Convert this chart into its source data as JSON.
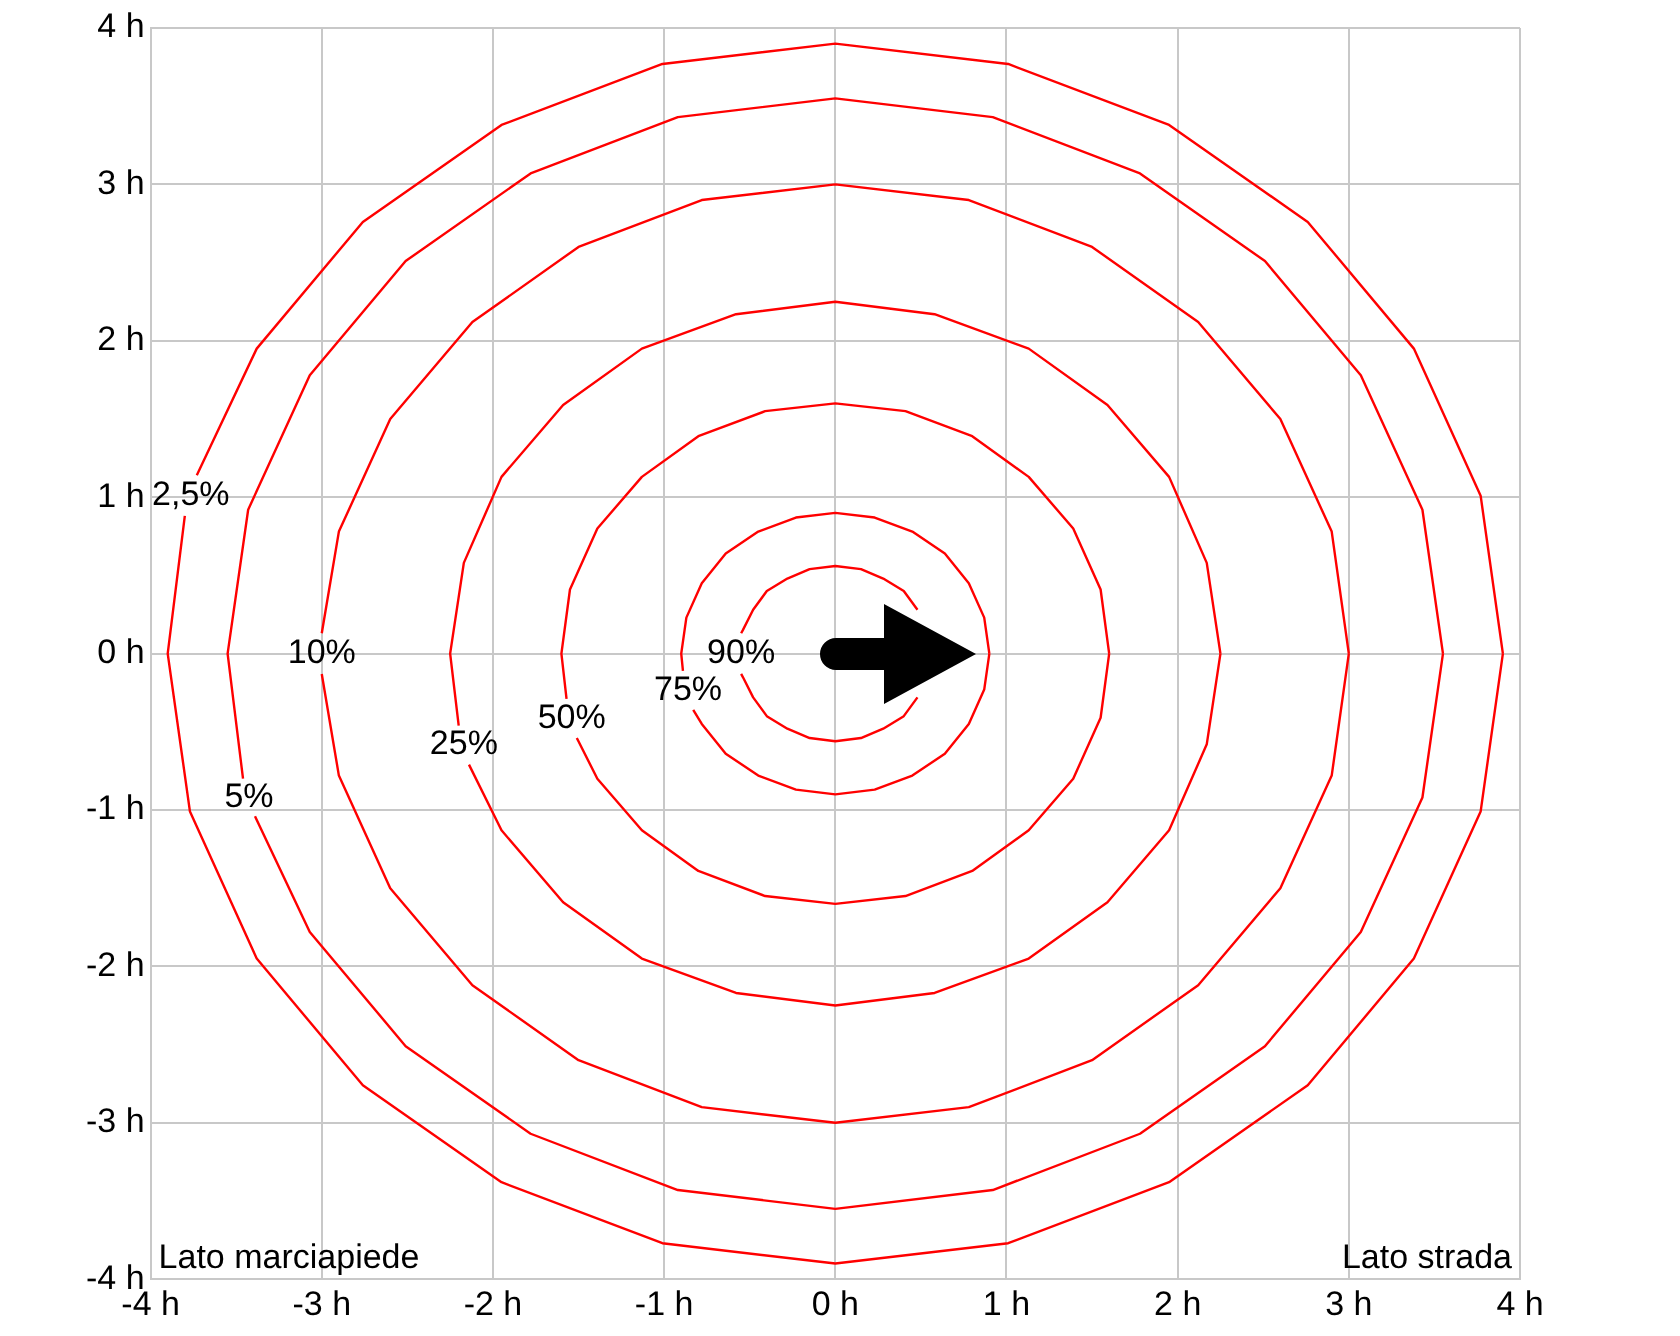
{
  "chart_data": {
    "type": "line",
    "xlim": [
      -4,
      4
    ],
    "ylim": [
      -4,
      4
    ],
    "xticks": [
      {
        "value": -4,
        "label": "-4 h"
      },
      {
        "value": -3,
        "label": "-3 h"
      },
      {
        "value": -2,
        "label": "-2 h"
      },
      {
        "value": -1,
        "label": "-1 h"
      },
      {
        "value": 0,
        "label": "0 h"
      },
      {
        "value": 1,
        "label": "1 h"
      },
      {
        "value": 2,
        "label": "2 h"
      },
      {
        "value": 3,
        "label": "3 h"
      },
      {
        "value": 4,
        "label": "4 h"
      }
    ],
    "yticks": [
      {
        "value": -4,
        "label": "-4 h"
      },
      {
        "value": -3,
        "label": "-3 h"
      },
      {
        "value": -2,
        "label": "-2 h"
      },
      {
        "value": -1,
        "label": "-1 h"
      },
      {
        "value": 0,
        "label": "0 h"
      },
      {
        "value": 1,
        "label": "1 h"
      },
      {
        "value": 2,
        "label": "2 h"
      },
      {
        "value": 3,
        "label": "3 h"
      },
      {
        "value": 4,
        "label": "4 h"
      }
    ],
    "grid": true,
    "marker": "none",
    "line_style": "solid",
    "annotations": [
      "Lato marciapiede",
      "Lato strada"
    ],
    "series": [
      {
        "name": "2,5%",
        "color": "#ff0000",
        "x": [
          3.9,
          3.77,
          3.38,
          2.76,
          1.95,
          1.01,
          0,
          -1.01,
          -1.95,
          -2.76,
          -3.38,
          -3.73,
          null,
          -3.8,
          -3.9,
          -3.77,
          -3.38,
          -2.76,
          -1.95,
          -1.01,
          0,
          1.01,
          1.95,
          2.76,
          3.38,
          3.77,
          3.9
        ],
        "values": [
          0,
          1.01,
          1.95,
          2.76,
          3.38,
          3.77,
          3.9,
          3.77,
          3.38,
          2.76,
          1.95,
          1.14,
          null,
          0.88,
          0,
          -1.01,
          -1.95,
          -2.76,
          -3.38,
          -3.77,
          -3.9,
          -3.77,
          -3.38,
          -2.76,
          -1.95,
          -1.01,
          0
        ]
      },
      {
        "name": "5%",
        "color": "#ff0000",
        "x": [
          3.55,
          3.43,
          3.07,
          2.51,
          1.78,
          0.92,
          0,
          -0.92,
          -1.78,
          -2.51,
          -3.07,
          -3.43,
          -3.55,
          -3.46,
          null,
          -3.39,
          -3.07,
          -2.51,
          -1.78,
          -0.92,
          0,
          0.92,
          1.78,
          2.51,
          3.07,
          3.43,
          3.55
        ],
        "values": [
          0,
          0.92,
          1.78,
          2.51,
          3.07,
          3.43,
          3.55,
          3.43,
          3.07,
          2.51,
          1.78,
          0.92,
          0,
          -0.8,
          null,
          -1.04,
          -1.78,
          -2.51,
          -3.07,
          -3.43,
          -3.55,
          -3.43,
          -3.07,
          -2.51,
          -1.78,
          -0.92,
          0
        ]
      },
      {
        "name": "10%",
        "color": "#ff0000",
        "x": [
          3,
          2.9,
          2.6,
          2.12,
          1.5,
          0.78,
          0,
          -0.78,
          -1.5,
          -2.12,
          -2.6,
          -2.9,
          -3,
          null,
          -3,
          -2.9,
          -2.6,
          -2.12,
          -1.5,
          -0.78,
          0,
          0.78,
          1.5,
          2.12,
          2.6,
          2.9,
          3
        ],
        "values": [
          0,
          0.78,
          1.5,
          2.12,
          2.6,
          2.9,
          3,
          2.9,
          2.6,
          2.12,
          1.5,
          0.78,
          0.13,
          null,
          -0.13,
          -0.78,
          -1.5,
          -2.12,
          -2.6,
          -2.9,
          -3,
          -2.9,
          -2.6,
          -2.12,
          -1.5,
          -0.78,
          0
        ]
      },
      {
        "name": "25%",
        "color": "#ff0000",
        "x": [
          2.25,
          2.17,
          1.95,
          1.59,
          1.13,
          0.58,
          0,
          -0.58,
          -1.13,
          -1.59,
          -1.95,
          -2.17,
          -2.25,
          -2.2,
          null,
          -2.14,
          -1.95,
          -1.59,
          -1.13,
          -0.58,
          0,
          0.58,
          1.13,
          1.59,
          1.95,
          2.17,
          2.25
        ],
        "values": [
          0,
          0.58,
          1.13,
          1.59,
          1.95,
          2.17,
          2.25,
          2.17,
          1.95,
          1.59,
          1.13,
          0.58,
          0,
          -0.46,
          null,
          -0.71,
          -1.13,
          -1.59,
          -1.95,
          -2.17,
          -2.25,
          -2.17,
          -1.95,
          -1.59,
          -1.13,
          -0.58,
          0
        ]
      },
      {
        "name": "50%",
        "color": "#ff0000",
        "x": [
          1.6,
          1.55,
          1.39,
          1.13,
          0.8,
          0.41,
          0,
          -0.41,
          -0.8,
          -1.13,
          -1.39,
          -1.55,
          -1.6,
          -1.57,
          null,
          -1.51,
          -1.39,
          -1.13,
          -0.8,
          -0.41,
          0,
          0.41,
          0.8,
          1.13,
          1.39,
          1.55,
          1.6
        ],
        "values": [
          0,
          0.41,
          0.8,
          1.13,
          1.39,
          1.55,
          1.6,
          1.55,
          1.39,
          1.13,
          0.8,
          0.41,
          0,
          -0.29,
          null,
          -0.54,
          -0.8,
          -1.13,
          -1.39,
          -1.55,
          -1.6,
          -1.55,
          -1.39,
          -1.13,
          -0.8,
          -0.41,
          0
        ]
      },
      {
        "name": "75%",
        "color": "#ff0000",
        "x": [
          0.9,
          0.87,
          0.78,
          0.64,
          0.45,
          0.23,
          0,
          -0.23,
          -0.45,
          -0.64,
          -0.78,
          -0.87,
          -0.9,
          -0.89,
          null,
          -0.83,
          -0.78,
          -0.64,
          -0.45,
          -0.23,
          0,
          0.23,
          0.45,
          0.64,
          0.78,
          0.87,
          0.9
        ],
        "values": [
          0,
          0.23,
          0.45,
          0.64,
          0.78,
          0.87,
          0.9,
          0.87,
          0.78,
          0.64,
          0.45,
          0.23,
          0,
          -0.11,
          null,
          -0.36,
          -0.45,
          -0.64,
          -0.78,
          -0.87,
          -0.9,
          -0.87,
          -0.78,
          -0.64,
          -0.45,
          -0.23,
          0
        ]
      },
      {
        "name": "90%",
        "color": "#ff0000",
        "x": [
          null,
          null,
          0.48,
          0.4,
          0.28,
          0.15,
          0,
          -0.15,
          -0.28,
          -0.4,
          -0.48,
          -0.54,
          -0.55,
          null,
          -0.55,
          -0.54,
          -0.48,
          -0.4,
          -0.28,
          -0.15,
          0,
          0.15,
          0.28,
          0.4,
          0.48,
          null,
          null
        ],
        "values": [
          null,
          null,
          0.28,
          0.4,
          0.48,
          0.54,
          0.56,
          0.54,
          0.48,
          0.4,
          0.28,
          0.15,
          0.13,
          null,
          -0.13,
          -0.15,
          -0.28,
          -0.4,
          -0.48,
          -0.54,
          -0.56,
          -0.54,
          -0.48,
          -0.4,
          -0.28,
          null,
          null
        ]
      }
    ]
  }
}
